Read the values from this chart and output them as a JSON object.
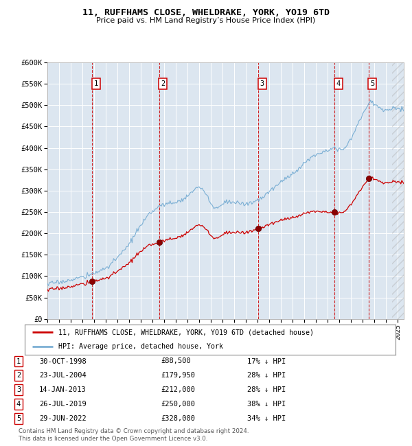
{
  "title": "11, RUFFHAMS CLOSE, WHELDRAKE, YORK, YO19 6TD",
  "subtitle": "Price paid vs. HM Land Registry’s House Price Index (HPI)",
  "plot_bg_color": "#dce6f0",
  "grid_color": "#ffffff",
  "hpi_color": "#7bafd4",
  "price_color": "#cc0000",
  "sale_marker_color": "#8b0000",
  "ylim": [
    0,
    600000
  ],
  "yticks": [
    0,
    50000,
    100000,
    150000,
    200000,
    250000,
    300000,
    350000,
    400000,
    450000,
    500000,
    550000,
    600000
  ],
  "ytick_labels": [
    "£0",
    "£50K",
    "£100K",
    "£150K",
    "£200K",
    "£250K",
    "£300K",
    "£350K",
    "£400K",
    "£450K",
    "£500K",
    "£550K",
    "£600K"
  ],
  "transactions": [
    {
      "num": 1,
      "date_label": "30-OCT-1998",
      "date_x": 1998.83,
      "price": 88500,
      "pct": "17%"
    },
    {
      "num": 2,
      "date_label": "23-JUL-2004",
      "date_x": 2004.55,
      "price": 179950,
      "pct": "28%"
    },
    {
      "num": 3,
      "date_label": "14-JAN-2013",
      "date_x": 2013.04,
      "price": 212000,
      "pct": "28%"
    },
    {
      "num": 4,
      "date_label": "26-JUL-2019",
      "date_x": 2019.57,
      "price": 250000,
      "pct": "38%"
    },
    {
      "num": 5,
      "date_label": "29-JUN-2022",
      "date_x": 2022.49,
      "price": 328000,
      "pct": "34%"
    }
  ],
  "legend_line1": "11, RUFFHAMS CLOSE, WHELDRAKE, YORK, YO19 6TD (detached house)",
  "legend_line2": "HPI: Average price, detached house, York",
  "footer": "Contains HM Land Registry data © Crown copyright and database right 2024.\nThis data is licensed under the Open Government Licence v3.0.",
  "xlim_start": 1995.0,
  "xlim_end": 2025.5,
  "hpi_key_points": [
    [
      1995.0,
      82000
    ],
    [
      1995.5,
      84000
    ],
    [
      1996.0,
      86000
    ],
    [
      1996.5,
      88000
    ],
    [
      1997.0,
      91000
    ],
    [
      1997.5,
      95000
    ],
    [
      1998.0,
      98000
    ],
    [
      1998.5,
      101000
    ],
    [
      1999.0,
      107000
    ],
    [
      1999.5,
      112000
    ],
    [
      2000.0,
      120000
    ],
    [
      2000.5,
      130000
    ],
    [
      2001.0,
      143000
    ],
    [
      2001.5,
      158000
    ],
    [
      2002.0,
      175000
    ],
    [
      2002.5,
      198000
    ],
    [
      2003.0,
      218000
    ],
    [
      2003.5,
      238000
    ],
    [
      2004.0,
      252000
    ],
    [
      2004.3,
      260000
    ],
    [
      2004.7,
      265000
    ],
    [
      2005.0,
      268000
    ],
    [
      2005.5,
      270000
    ],
    [
      2006.0,
      273000
    ],
    [
      2006.5,
      278000
    ],
    [
      2007.0,
      288000
    ],
    [
      2007.5,
      300000
    ],
    [
      2007.9,
      308000
    ],
    [
      2008.3,
      302000
    ],
    [
      2008.7,
      288000
    ],
    [
      2009.0,
      268000
    ],
    [
      2009.3,
      258000
    ],
    [
      2009.7,
      262000
    ],
    [
      2010.0,
      272000
    ],
    [
      2010.5,
      275000
    ],
    [
      2011.0,
      272000
    ],
    [
      2011.5,
      270000
    ],
    [
      2012.0,
      268000
    ],
    [
      2012.5,
      272000
    ],
    [
      2013.0,
      278000
    ],
    [
      2013.5,
      285000
    ],
    [
      2014.0,
      298000
    ],
    [
      2014.5,
      310000
    ],
    [
      2015.0,
      320000
    ],
    [
      2015.5,
      330000
    ],
    [
      2016.0,
      340000
    ],
    [
      2016.5,
      352000
    ],
    [
      2017.0,
      365000
    ],
    [
      2017.5,
      375000
    ],
    [
      2018.0,
      385000
    ],
    [
      2018.5,
      392000
    ],
    [
      2019.0,
      396000
    ],
    [
      2019.5,
      400000
    ],
    [
      2020.0,
      398000
    ],
    [
      2020.3,
      395000
    ],
    [
      2020.6,
      405000
    ],
    [
      2021.0,
      420000
    ],
    [
      2021.3,
      440000
    ],
    [
      2021.6,
      460000
    ],
    [
      2022.0,
      478000
    ],
    [
      2022.4,
      498000
    ],
    [
      2022.6,
      510000
    ],
    [
      2022.9,
      505000
    ],
    [
      2023.2,
      498000
    ],
    [
      2023.5,
      492000
    ],
    [
      2023.8,
      488000
    ],
    [
      2024.2,
      490000
    ],
    [
      2024.6,
      495000
    ],
    [
      2025.0,
      492000
    ],
    [
      2025.5,
      490000
    ]
  ]
}
